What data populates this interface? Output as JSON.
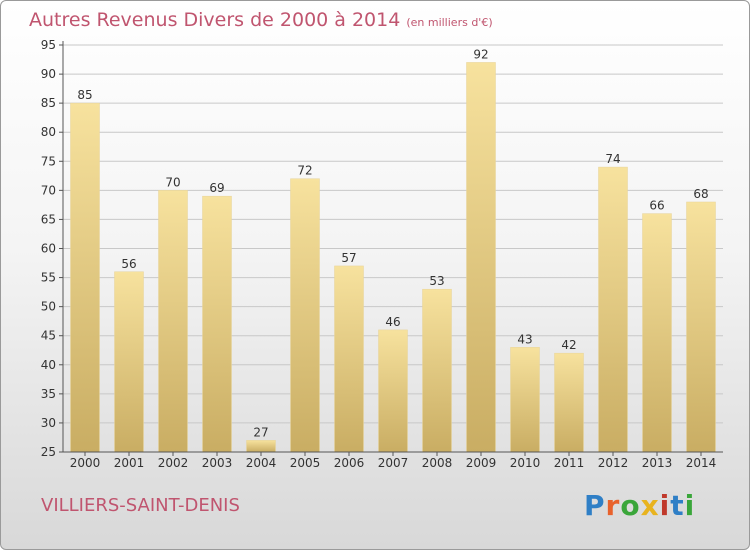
{
  "header": {
    "title": "Autres Revenus Divers de 2000 à 2014",
    "unit": "(en milliers d'€)"
  },
  "footer": {
    "commune": "VILLIERS-SAINT-DENIS",
    "logo_text": "Proxiti"
  },
  "colors": {
    "title": "#c0556f",
    "bar_light": "#f7e29e",
    "bar_dark": "#c9ad63",
    "grid": "#c8c8c8",
    "axis": "#555555",
    "logo": [
      "#2f7fc6",
      "#e8622c",
      "#3aa63a",
      "#e8b31e",
      "#c0392b",
      "#2f7fc6",
      "#3aa63a"
    ]
  },
  "chart_data": {
    "type": "bar",
    "title": "Autres Revenus Divers de 2000 à 2014",
    "subtitle": "(en milliers d'€)",
    "categories": [
      "2000",
      "2001",
      "2002",
      "2003",
      "2004",
      "2005",
      "2006",
      "2007",
      "2008",
      "2009",
      "2010",
      "2011",
      "2012",
      "2013",
      "2014"
    ],
    "values": [
      85,
      56,
      70,
      69,
      27,
      72,
      57,
      46,
      53,
      92,
      43,
      42,
      74,
      66,
      68
    ],
    "ylim": [
      25,
      95
    ],
    "yticks": [
      25,
      30,
      35,
      40,
      45,
      50,
      55,
      60,
      65,
      70,
      75,
      80,
      85,
      90,
      95
    ],
    "grid": true,
    "data_labels": true
  }
}
